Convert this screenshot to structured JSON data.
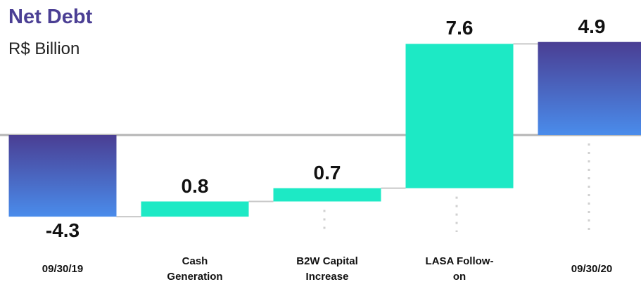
{
  "chart_data": {
    "type": "waterfall",
    "title": "Net Debt",
    "subtitle": "R$ Billion",
    "categories": [
      "09/30/19",
      "Cash Generation",
      "B2W Capital Increase",
      "LASA Follow-on",
      "09/30/20"
    ],
    "values": [
      -4.3,
      0.8,
      0.7,
      7.6,
      4.9
    ],
    "measure": [
      "absolute",
      "relative",
      "relative",
      "relative",
      "absolute"
    ],
    "total_color": [
      "#4a3e93",
      "#4a8ceb"
    ],
    "increase_color": "#1de9c5"
  }
}
